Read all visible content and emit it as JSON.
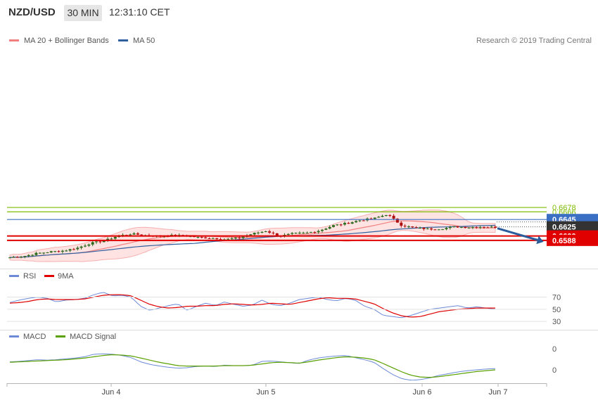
{
  "header": {
    "symbol": "NZD/USD",
    "timeframe": "30 MIN",
    "time": "12:31:10 CET"
  },
  "legend": {
    "items": [
      {
        "label": "MA 20 + Bollinger Bands",
        "color": "#f08080"
      },
      {
        "label": "MA 50",
        "color": "#2f5f9e"
      }
    ],
    "credit": "Research © 2019 Trading Central"
  },
  "colors": {
    "bull": "#2d6a1e",
    "bear": "#b01010",
    "band": "#ffd0d0",
    "ma20": "#f08080",
    "ma50": "#2f5f9e",
    "target": "#7cbb00",
    "resistance": "#3a6fc4",
    "support": "#e00000",
    "current": "#333333",
    "arrow": "#2b5d9c",
    "rsi": "#6c8ad6",
    "rsi_ma": "#e00000",
    "macd": "#6c8ad6",
    "macd_signal": "#5aa000"
  },
  "chart_data": [
    {
      "type": "candlestick",
      "title": "",
      "x_labels": [
        "Jun 4",
        "Jun 5",
        "Jun 6",
        "Jun 7"
      ],
      "levels": [
        {
          "value": 0.6678,
          "label": "0.6678",
          "kind": "target"
        },
        {
          "value": 0.6666,
          "label": "0.6666",
          "kind": "target"
        },
        {
          "value": 0.6645,
          "label": "0.6645",
          "kind": "resistance"
        },
        {
          "value": 0.6625,
          "label": "0.6625",
          "kind": "current"
        },
        {
          "value": 0.66,
          "label": "0.6600",
          "kind": "support"
        },
        {
          "value": 0.6588,
          "label": "0.6588",
          "kind": "support"
        }
      ],
      "arrow": {
        "from": 0.6621,
        "to": 0.6589
      },
      "close_keys": [
        0.65412,
        0.65445,
        0.65524,
        0.65568,
        0.65597,
        0.65671,
        0.65803,
        0.65869,
        0.66001,
        0.66059,
        0.6602,
        0.65996,
        0.66012,
        0.6601,
        0.65958,
        0.65943,
        0.65907,
        0.65947,
        0.66062,
        0.66138,
        0.65992,
        0.66064,
        0.66082,
        0.66153,
        0.66288,
        0.66346,
        0.66432,
        0.66478,
        0.66595,
        0.663,
        0.66218,
        0.66192,
        0.66198,
        0.66252,
        0.66238,
        0.66248,
        0.66238
      ]
    },
    {
      "type": "line",
      "title": "",
      "series": [
        {
          "name": "RSI"
        },
        {
          "name": "9MA"
        }
      ],
      "y_ticks": [
        70,
        50,
        30
      ],
      "ylim": [
        22,
        88
      ],
      "rsi": [
        61,
        65,
        68,
        70,
        68,
        62,
        65,
        66,
        68,
        74,
        78,
        72,
        73,
        70,
        55,
        48,
        52,
        56,
        59,
        48,
        55,
        60,
        56,
        62,
        58,
        55,
        57,
        65,
        58,
        56,
        60,
        66,
        68,
        70,
        66,
        64,
        68,
        65,
        55,
        50,
        40,
        38,
        36,
        40,
        45,
        50,
        52,
        54,
        56,
        52,
        54,
        52,
        50
      ],
      "ma9": [
        60,
        61,
        63,
        66,
        67,
        66,
        66,
        66,
        67,
        70,
        73,
        74,
        74,
        72,
        65,
        58,
        54,
        52,
        53,
        55,
        55,
        56,
        56,
        58,
        59,
        58,
        57,
        58,
        60,
        59,
        58,
        61,
        64,
        67,
        69,
        68,
        68,
        67,
        63,
        59,
        51,
        44,
        39,
        37,
        38,
        42,
        46,
        48,
        50,
        51,
        52,
        52,
        52
      ]
    },
    {
      "type": "line",
      "title": "",
      "series": [
        {
          "name": "MACD"
        },
        {
          "name": "MACD Signal"
        }
      ],
      "y_ticks": [
        "0",
        "0"
      ],
      "macd": [
        0.4,
        0.5,
        0.7,
        0.9,
        0.8,
        0.9,
        1.1,
        1.3,
        1.6,
        2.2,
        2.3,
        2.2,
        1.9,
        1.4,
        0.4,
        -0.2,
        -0.6,
        -0.9,
        -1.1,
        -1.0,
        -0.7,
        -0.6,
        -0.7,
        -0.4,
        -0.5,
        -0.5,
        -0.4,
        0.5,
        0.6,
        0.4,
        0.2,
        0.0,
        0.8,
        1.3,
        1.6,
        1.8,
        1.9,
        1.4,
        0.9,
        0.3,
        -1.2,
        -2.6,
        -3.6,
        -4.0,
        -3.8,
        -3.4,
        -2.8,
        -2.4,
        -2.0,
        -1.7,
        -1.5,
        -1.3,
        -1.2
      ],
      "signal": [
        0.3,
        0.4,
        0.5,
        0.6,
        0.7,
        0.8,
        0.9,
        1.1,
        1.3,
        1.6,
        1.9,
        2.1,
        2.0,
        1.8,
        1.3,
        0.8,
        0.3,
        -0.1,
        -0.5,
        -0.6,
        -0.6,
        -0.6,
        -0.6,
        -0.5,
        -0.5,
        -0.5,
        -0.4,
        -0.1,
        0.2,
        0.3,
        0.2,
        0.1,
        0.4,
        0.8,
        1.1,
        1.4,
        1.6,
        1.5,
        1.3,
        0.9,
        0.0,
        -1.0,
        -2.0,
        -2.8,
        -3.2,
        -3.3,
        -3.1,
        -2.8,
        -2.5,
        -2.2,
        -1.9,
        -1.7,
        -1.5
      ]
    }
  ]
}
